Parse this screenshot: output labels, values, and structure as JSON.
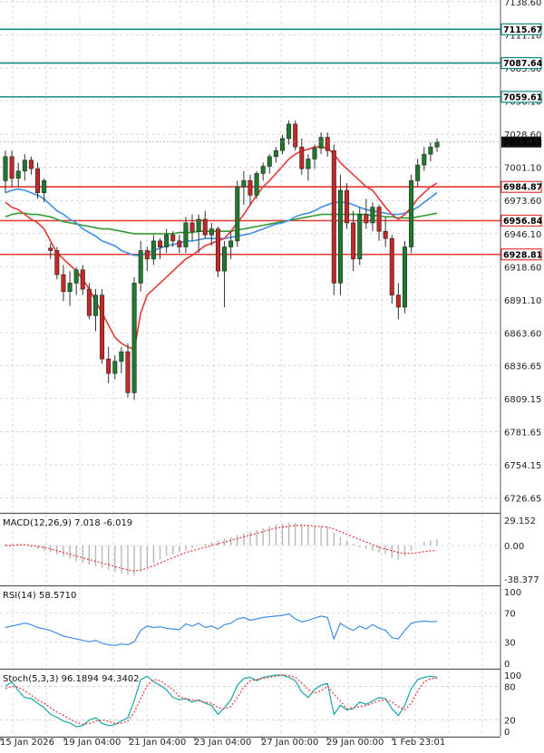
{
  "chart_data": {
    "type": "candlestick",
    "main": {
      "price_axis_labels": [
        "7028.60",
        "7001.10",
        "6973.60",
        "6946.10",
        "6918.60",
        "6891.10",
        "6863.60",
        "6836.65",
        "6809.15",
        "6781.65",
        "6754.15",
        "6726.65"
      ],
      "top_labels": [
        "7138.60",
        "7111.10",
        "7083.60",
        "7056.10"
      ],
      "ylim": [
        6715,
        7140
      ],
      "current_price": "7022.12",
      "horizontal_levels": [
        {
          "label": "7115.67",
          "value": 7115.67,
          "color": "#0f8a7e"
        },
        {
          "label": "7087.64",
          "value": 7087.64,
          "color": "#0f8a7e"
        },
        {
          "label": "7059.61",
          "value": 7059.61,
          "color": "#0f8a7e"
        },
        {
          "label": "6984.87",
          "value": 6984.87,
          "color": "#e53935"
        },
        {
          "label": "6956.84",
          "value": 6956.84,
          "color": "#e53935"
        },
        {
          "label": "6928.81",
          "value": 6928.81,
          "color": "#e53935"
        }
      ],
      "candles": [
        {
          "o": 6990,
          "h": 7015,
          "l": 6980,
          "c": 7010
        },
        {
          "o": 7010,
          "h": 7015,
          "l": 6985,
          "c": 6992
        },
        {
          "o": 6992,
          "h": 7005,
          "l": 6985,
          "c": 6998
        },
        {
          "o": 6998,
          "h": 7012,
          "l": 6990,
          "c": 7007
        },
        {
          "o": 7007,
          "h": 7010,
          "l": 6995,
          "c": 7000
        },
        {
          "o": 7000,
          "h": 7005,
          "l": 6975,
          "c": 6980
        },
        {
          "o": 6980,
          "h": 6992,
          "l": 6972,
          "c": 6990
        },
        {
          "o": 6934,
          "h": 6938,
          "l": 6925,
          "c": 6932
        },
        {
          "o": 6932,
          "h": 6935,
          "l": 6908,
          "c": 6912
        },
        {
          "o": 6912,
          "h": 6920,
          "l": 6890,
          "c": 6898
        },
        {
          "o": 6898,
          "h": 6915,
          "l": 6886,
          "c": 6905
        },
        {
          "o": 6905,
          "h": 6918,
          "l": 6895,
          "c": 6916
        },
        {
          "o": 6916,
          "h": 6920,
          "l": 6895,
          "c": 6900
        },
        {
          "o": 6900,
          "h": 6905,
          "l": 6875,
          "c": 6878
        },
        {
          "o": 6878,
          "h": 6900,
          "l": 6865,
          "c": 6895
        },
        {
          "o": 6895,
          "h": 6900,
          "l": 6838,
          "c": 6842
        },
        {
          "o": 6842,
          "h": 6852,
          "l": 6822,
          "c": 6830
        },
        {
          "o": 6830,
          "h": 6845,
          "l": 6825,
          "c": 6840
        },
        {
          "o": 6840,
          "h": 6852,
          "l": 6830,
          "c": 6848
        },
        {
          "o": 6848,
          "h": 6855,
          "l": 6810,
          "c": 6814
        },
        {
          "o": 6814,
          "h": 6910,
          "l": 6808,
          "c": 6905
        },
        {
          "o": 6905,
          "h": 6940,
          "l": 6898,
          "c": 6932
        },
        {
          "o": 6932,
          "h": 6935,
          "l": 6915,
          "c": 6925
        },
        {
          "o": 6925,
          "h": 6945,
          "l": 6920,
          "c": 6940
        },
        {
          "o": 6940,
          "h": 6942,
          "l": 6925,
          "c": 6935
        },
        {
          "o": 6935,
          "h": 6950,
          "l": 6930,
          "c": 6945
        },
        {
          "o": 6945,
          "h": 6948,
          "l": 6935,
          "c": 6940
        },
        {
          "o": 6940,
          "h": 6945,
          "l": 6930,
          "c": 6935
        },
        {
          "o": 6935,
          "h": 6960,
          "l": 6930,
          "c": 6955
        },
        {
          "o": 6955,
          "h": 6962,
          "l": 6940,
          "c": 6948
        },
        {
          "o": 6948,
          "h": 6962,
          "l": 6930,
          "c": 6958
        },
        {
          "o": 6958,
          "h": 6965,
          "l": 6942,
          "c": 6945
        },
        {
          "o": 6945,
          "h": 6955,
          "l": 6936,
          "c": 6950
        },
        {
          "o": 6950,
          "h": 6952,
          "l": 6910,
          "c": 6915
        },
        {
          "o": 6915,
          "h": 6940,
          "l": 6885,
          "c": 6935
        },
        {
          "o": 6935,
          "h": 6948,
          "l": 6925,
          "c": 6940
        },
        {
          "o": 6940,
          "h": 6990,
          "l": 6935,
          "c": 6985
        },
        {
          "o": 6985,
          "h": 6998,
          "l": 6970,
          "c": 6990
        },
        {
          "o": 6990,
          "h": 6995,
          "l": 6970,
          "c": 6978
        },
        {
          "o": 6978,
          "h": 6998,
          "l": 6975,
          "c": 6996
        },
        {
          "o": 6996,
          "h": 7005,
          "l": 6990,
          "c": 7002
        },
        {
          "o": 7002,
          "h": 7012,
          "l": 6996,
          "c": 7010
        },
        {
          "o": 7010,
          "h": 7018,
          "l": 7005,
          "c": 7015
        },
        {
          "o": 7015,
          "h": 7028,
          "l": 7012,
          "c": 7025
        },
        {
          "o": 7025,
          "h": 7040,
          "l": 7020,
          "c": 7037
        },
        {
          "o": 7037,
          "h": 7040,
          "l": 7015,
          "c": 7018
        },
        {
          "o": 7018,
          "h": 7025,
          "l": 6995,
          "c": 7000
        },
        {
          "o": 7000,
          "h": 7012,
          "l": 6990,
          "c": 7008
        },
        {
          "o": 7008,
          "h": 7020,
          "l": 7000,
          "c": 7017
        },
        {
          "o": 7017,
          "h": 7030,
          "l": 7012,
          "c": 7026
        },
        {
          "o": 7026,
          "h": 7030,
          "l": 7010,
          "c": 7015
        },
        {
          "o": 7015,
          "h": 7020,
          "l": 6895,
          "c": 6905
        },
        {
          "o": 6905,
          "h": 6995,
          "l": 6895,
          "c": 6982
        },
        {
          "o": 6982,
          "h": 6988,
          "l": 6950,
          "c": 6955
        },
        {
          "o": 6955,
          "h": 6965,
          "l": 6915,
          "c": 6925
        },
        {
          "o": 6925,
          "h": 6968,
          "l": 6920,
          "c": 6962
        },
        {
          "o": 6962,
          "h": 6975,
          "l": 6950,
          "c": 6955
        },
        {
          "o": 6955,
          "h": 6972,
          "l": 6948,
          "c": 6968
        },
        {
          "o": 6968,
          "h": 6970,
          "l": 6940,
          "c": 6948
        },
        {
          "o": 6948,
          "h": 6960,
          "l": 6935,
          "c": 6942
        },
        {
          "o": 6942,
          "h": 6945,
          "l": 6888,
          "c": 6895
        },
        {
          "o": 6895,
          "h": 6905,
          "l": 6875,
          "c": 6885
        },
        {
          "o": 6885,
          "h": 6940,
          "l": 6880,
          "c": 6935
        },
        {
          "o": 6935,
          "h": 6995,
          "l": 6930,
          "c": 6990
        },
        {
          "o": 6990,
          "h": 7008,
          "l": 6985,
          "c": 7003
        },
        {
          "o": 7003,
          "h": 7018,
          "l": 6998,
          "c": 7012
        },
        {
          "o": 7012,
          "h": 7022,
          "l": 7006,
          "c": 7018
        },
        {
          "o": 7018,
          "h": 7025,
          "l": 7014,
          "c": 7022.12
        }
      ],
      "ma_red": [
        6972,
        6968,
        6966,
        6962,
        6958,
        6955,
        6950,
        6940,
        6930,
        6925,
        6920,
        6915,
        6908,
        6900,
        6890,
        6880,
        6870,
        6860,
        6855,
        6852,
        6850,
        6880,
        6895,
        6900,
        6905,
        6910,
        6915,
        6920,
        6925,
        6928,
        6932,
        6936,
        6938,
        6940,
        6942,
        6948,
        6955,
        6962,
        6970,
        6978,
        6985,
        6990,
        6996,
        7002,
        7008,
        7012,
        7015,
        7016,
        7018,
        7018,
        7017,
        7012,
        7005,
        7000,
        6995,
        6990,
        6985,
        6982,
        6975,
        6968,
        6962,
        6958,
        6962,
        6968,
        6975,
        6980,
        6985,
        6988
      ],
      "ma_blue": [
        6980,
        6982,
        6983,
        6982,
        6980,
        6978,
        6975,
        6970,
        6965,
        6962,
        6958,
        6955,
        6950,
        6947,
        6944,
        6940,
        6938,
        6936,
        6932,
        6930,
        6928,
        6928,
        6930,
        6932,
        6934,
        6936,
        6937,
        6938,
        6940,
        6940,
        6941,
        6942,
        6942,
        6942,
        6942,
        6943,
        6944,
        6945,
        6946,
        6948,
        6950,
        6952,
        6954,
        6955,
        6957,
        6960,
        6962,
        6963,
        6965,
        6968,
        6970,
        6972,
        6972,
        6972,
        6970,
        6968,
        6966,
        6965,
        6964,
        6963,
        6962,
        6962,
        6963,
        6965,
        6968,
        6972,
        6976,
        6980
      ],
      "ma_green": [
        6960,
        6962,
        6963,
        6963,
        6962,
        6962,
        6961,
        6960,
        6958,
        6956,
        6955,
        6954,
        6953,
        6952,
        6951,
        6950,
        6950,
        6949,
        6948,
        6947,
        6946,
        6946,
        6946,
        6946,
        6946,
        6946,
        6946,
        6947,
        6947,
        6947,
        6948,
        6948,
        6948,
        6948,
        6948,
        6948,
        6949,
        6950,
        6951,
        6952,
        6953,
        6954,
        6955,
        6956,
        6957,
        6958,
        6959,
        6960,
        6961,
        6962,
        6962,
        6962,
        6962,
        6962,
        6962,
        6962,
        6962,
        6961,
        6961,
        6960,
        6960,
        6959,
        6959,
        6959,
        6960,
        6961,
        6962,
        6963
      ]
    },
    "macd": {
      "title": "MACD(12,26,9) 7.018 -6.019",
      "axis_labels": [
        "29.152",
        "0.00",
        "-38.377"
      ],
      "ylim": [
        -38.377,
        29.152
      ],
      "histogram": [
        2,
        2,
        1,
        0,
        -2,
        -4,
        -6,
        -8,
        -10,
        -12,
        -15,
        -18,
        -20,
        -22,
        -24,
        -26,
        -28,
        -30,
        -32,
        -34,
        -34,
        -30,
        -25,
        -20,
        -16,
        -12,
        -10,
        -8,
        -6,
        -3,
        0,
        2,
        4,
        6,
        8,
        10,
        12,
        14,
        16,
        18,
        20,
        22,
        24,
        25,
        26,
        26,
        25,
        24,
        23,
        22,
        21,
        15,
        10,
        6,
        2,
        -2,
        -4,
        -6,
        -8,
        -10,
        -14,
        -16,
        -12,
        -6,
        0,
        4,
        6,
        7
      ],
      "signal": [
        0,
        0,
        1,
        1,
        0,
        -1,
        -2,
        -4,
        -6,
        -8,
        -10,
        -12,
        -14,
        -16,
        -18,
        -20,
        -22,
        -24,
        -26,
        -28,
        -29,
        -28,
        -26,
        -23,
        -20,
        -17,
        -14,
        -11,
        -8,
        -6,
        -4,
        -2,
        0,
        2,
        4,
        6,
        8,
        10,
        12,
        14,
        16,
        18,
        20,
        21,
        22,
        23,
        23,
        23,
        22,
        22,
        21,
        19,
        16,
        13,
        10,
        7,
        4,
        1,
        -2,
        -4,
        -6,
        -8,
        -9,
        -9,
        -8,
        -7,
        -6,
        -6
      ]
    },
    "rsi": {
      "title": "RSI(14) 58.5710",
      "axis_labels": [
        "100",
        "70",
        "30",
        "0"
      ],
      "ylim": [
        0,
        100
      ],
      "values": [
        50,
        52,
        54,
        56,
        54,
        50,
        48,
        46,
        42,
        38,
        36,
        34,
        32,
        30,
        32,
        28,
        26,
        25,
        27,
        26,
        30,
        46,
        52,
        50,
        51,
        49,
        48,
        47,
        55,
        52,
        56,
        50,
        52,
        48,
        54,
        56,
        62,
        64,
        60,
        62,
        64,
        65,
        66,
        67,
        69,
        62,
        58,
        60,
        63,
        66,
        64,
        34,
        56,
        50,
        46,
        52,
        48,
        54,
        49,
        46,
        36,
        34,
        46,
        56,
        58,
        59,
        58,
        58.571
      ]
    },
    "stoch": {
      "title": "Stoch(5,3,3) 96.1894 94.3402",
      "axis_labels": [
        "100",
        "80",
        "20",
        "0"
      ],
      "ylim": [
        0,
        100
      ],
      "k": [
        80,
        88,
        72,
        60,
        58,
        50,
        42,
        30,
        25,
        18,
        15,
        8,
        10,
        20,
        24,
        14,
        10,
        12,
        18,
        24,
        55,
        92,
        98,
        88,
        82,
        74,
        60,
        56,
        58,
        52,
        56,
        50,
        46,
        30,
        42,
        56,
        82,
        94,
        96,
        90,
        96,
        98,
        100,
        100,
        96,
        90,
        70,
        60,
        74,
        82,
        85,
        30,
        46,
        38,
        40,
        52,
        48,
        54,
        60,
        58,
        40,
        28,
        46,
        76,
        92,
        96,
        98,
        96.1894
      ],
      "d": [
        76,
        80,
        78,
        72,
        64,
        56,
        50,
        42,
        34,
        28,
        22,
        16,
        12,
        14,
        18,
        20,
        18,
        14,
        14,
        18,
        34,
        58,
        82,
        92,
        90,
        82,
        74,
        62,
        58,
        56,
        54,
        52,
        50,
        42,
        40,
        44,
        60,
        78,
        90,
        92,
        94,
        96,
        98,
        100,
        99,
        96,
        86,
        74,
        68,
        72,
        80,
        66,
        54,
        40,
        42,
        44,
        46,
        50,
        54,
        56,
        52,
        44,
        38,
        50,
        72,
        88,
        94,
        94.3402
      ]
    },
    "x_labels": [
      "15 Jan 2026",
      "19 Jan 04:00",
      "21 Jan 04:00",
      "23 Jan 04:00",
      "27 Jan 00:00",
      "29 Jan 00:00",
      "1 Feb 23:01"
    ]
  }
}
